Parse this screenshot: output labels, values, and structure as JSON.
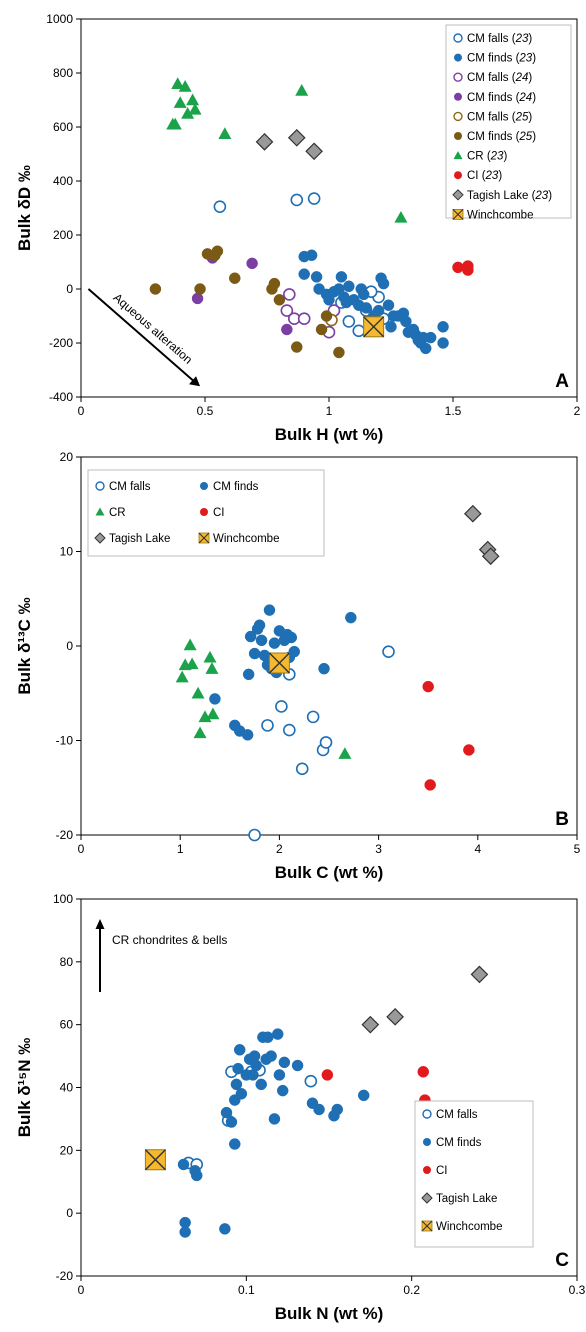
{
  "chart_data": [
    {
      "type": "scatter",
      "panel": "A",
      "xlabel": "Bulk H (wt %)",
      "ylabel": "Bulk δD ‰",
      "xlim": [
        0,
        2
      ],
      "ylim": [
        -400,
        1000
      ],
      "xticks": [
        0,
        0.5,
        1,
        1.5,
        2
      ],
      "yticks": [
        -400,
        -200,
        0,
        200,
        400,
        600,
        800,
        1000
      ],
      "legend_position": "top-right",
      "annotation": "Aqueous alteration",
      "series": [
        {
          "name": "CM falls",
          "ref": "23",
          "marker": "circle-open",
          "color": "#1f6fb5",
          "points": [
            [
              0.56,
              305
            ],
            [
              0.87,
              330
            ],
            [
              0.94,
              335
            ],
            [
              1.05,
              -50
            ],
            [
              1.08,
              -120
            ],
            [
              1.12,
              -155
            ],
            [
              1.15,
              -80
            ],
            [
              1.2,
              -30
            ],
            [
              1.22,
              -110
            ],
            [
              1.17,
              -10
            ]
          ]
        },
        {
          "name": "CM finds",
          "ref": "23",
          "marker": "circle",
          "color": "#1f6fb5",
          "points": [
            [
              0.9,
              120
            ],
            [
              0.93,
              125
            ],
            [
              0.9,
              55
            ],
            [
              0.95,
              45
            ],
            [
              0.96,
              0
            ],
            [
              0.99,
              -20
            ],
            [
              1.0,
              -40
            ],
            [
              1.02,
              -10
            ],
            [
              1.04,
              0
            ],
            [
              1.05,
              45
            ],
            [
              1.06,
              -30
            ],
            [
              1.07,
              -50
            ],
            [
              1.08,
              10
            ],
            [
              1.1,
              -40
            ],
            [
              1.12,
              -60
            ],
            [
              1.13,
              0
            ],
            [
              1.14,
              -20
            ],
            [
              1.15,
              -70
            ],
            [
              1.16,
              -120
            ],
            [
              1.18,
              -100
            ],
            [
              1.2,
              -80
            ],
            [
              1.21,
              40
            ],
            [
              1.22,
              20
            ],
            [
              1.24,
              -60
            ],
            [
              1.25,
              -140
            ],
            [
              1.26,
              -100
            ],
            [
              1.28,
              -100
            ],
            [
              1.3,
              -90
            ],
            [
              1.31,
              -120
            ],
            [
              1.32,
              -160
            ],
            [
              1.34,
              -150
            ],
            [
              1.35,
              -170
            ],
            [
              1.36,
              -190
            ],
            [
              1.37,
              -200
            ],
            [
              1.38,
              -180
            ],
            [
              1.39,
              -220
            ],
            [
              1.41,
              -180
            ],
            [
              1.46,
              -200
            ],
            [
              1.46,
              -140
            ]
          ]
        },
        {
          "name": "CM falls",
          "ref": "24",
          "marker": "circle-open",
          "color": "#7b3fa3",
          "points": [
            [
              0.83,
              -80
            ],
            [
              0.84,
              -20
            ],
            [
              0.86,
              -110
            ],
            [
              0.9,
              -110
            ],
            [
              1.0,
              -160
            ],
            [
              1.02,
              -80
            ]
          ]
        },
        {
          "name": "CM finds",
          "ref": "24",
          "marker": "circle",
          "color": "#7b3fa3",
          "points": [
            [
              0.53,
              115
            ],
            [
              0.69,
              95
            ],
            [
              0.47,
              -35
            ],
            [
              0.83,
              -150
            ]
          ]
        },
        {
          "name": "CM falls",
          "ref": "25",
          "marker": "circle-open",
          "color": "#8b6914",
          "points": [
            [
              1.01,
              -115
            ]
          ]
        },
        {
          "name": "CM finds",
          "ref": "25",
          "marker": "circle",
          "color": "#7a5a14",
          "points": [
            [
              0.3,
              0
            ],
            [
              0.48,
              0
            ],
            [
              0.51,
              130
            ],
            [
              0.55,
              140
            ],
            [
              0.62,
              40
            ],
            [
              0.77,
              0
            ],
            [
              0.78,
              20
            ],
            [
              0.8,
              -40
            ],
            [
              0.87,
              -215
            ],
            [
              0.97,
              -150
            ],
            [
              0.99,
              -100
            ],
            [
              1.04,
              -235
            ],
            [
              0.54,
              125
            ]
          ]
        },
        {
          "name": "CR",
          "ref": "23",
          "marker": "triangle",
          "color": "#1aa34a",
          "points": [
            [
              0.37,
              610
            ],
            [
              0.38,
              610
            ],
            [
              0.39,
              760
            ],
            [
              0.4,
              690
            ],
            [
              0.42,
              750
            ],
            [
              0.43,
              650
            ],
            [
              0.45,
              700
            ],
            [
              0.46,
              665
            ],
            [
              0.58,
              575
            ],
            [
              0.89,
              735
            ],
            [
              1.29,
              265
            ]
          ]
        },
        {
          "name": "CI",
          "ref": "23",
          "marker": "circle",
          "color": "#e31a1c",
          "points": [
            [
              1.52,
              80
            ],
            [
              1.56,
              85
            ],
            [
              1.56,
              70
            ]
          ]
        },
        {
          "name": "Tagish Lake",
          "ref": "23",
          "marker": "diamond",
          "color": "#999999",
          "points": [
            [
              0.74,
              545
            ],
            [
              0.87,
              560
            ],
            [
              0.94,
              510
            ]
          ]
        },
        {
          "name": "Winchcombe",
          "ref": "",
          "marker": "square-x",
          "color": "#f5b82e",
          "points": [
            [
              1.18,
              -140
            ]
          ]
        }
      ]
    },
    {
      "type": "scatter",
      "panel": "B",
      "xlabel": "Bulk C (wt %)",
      "ylabel": "Bulk δ¹³C ‰",
      "xlim": [
        0,
        5
      ],
      "ylim": [
        -20,
        20
      ],
      "xticks": [
        0,
        1,
        2,
        3,
        4,
        5
      ],
      "yticks": [
        -20,
        -10,
        0,
        10,
        20
      ],
      "legend_position": "top-left",
      "series": [
        {
          "name": "CM falls",
          "marker": "circle-open",
          "color": "#1f6fb5",
          "points": [
            [
              1.75,
              -20
            ],
            [
              1.88,
              -8.4
            ],
            [
              2.02,
              -6.4
            ],
            [
              2.1,
              -8.9
            ],
            [
              2.1,
              -3.0
            ],
            [
              2.23,
              -13.0
            ],
            [
              2.34,
              -7.5
            ],
            [
              2.44,
              -11.0
            ],
            [
              2.47,
              -10.2
            ],
            [
              3.1,
              -0.6
            ]
          ]
        },
        {
          "name": "CM finds",
          "marker": "circle",
          "color": "#1f6fb5",
          "points": [
            [
              1.35,
              -5.6
            ],
            [
              1.55,
              -8.4
            ],
            [
              1.6,
              -9.0
            ],
            [
              1.68,
              -9.4
            ],
            [
              1.69,
              -3.0
            ],
            [
              1.71,
              1.0
            ],
            [
              1.75,
              -0.8
            ],
            [
              1.78,
              1.8
            ],
            [
              1.8,
              2.2
            ],
            [
              1.82,
              0.6
            ],
            [
              1.85,
              -1.0
            ],
            [
              1.9,
              3.8
            ],
            [
              1.95,
              0.3
            ],
            [
              2.0,
              1.6
            ],
            [
              2.02,
              -1.8
            ],
            [
              2.05,
              0.6
            ],
            [
              2.08,
              1.2
            ],
            [
              2.1,
              -1.2
            ],
            [
              2.12,
              0.9
            ],
            [
              2.15,
              -0.6
            ],
            [
              1.92,
              -2.4
            ],
            [
              1.97,
              -2.8
            ],
            [
              1.88,
              -2.0
            ],
            [
              2.45,
              -2.4
            ],
            [
              2.72,
              3.0
            ]
          ]
        },
        {
          "name": "CR",
          "marker": "triangle",
          "color": "#1aa34a",
          "points": [
            [
              1.02,
              -3.3
            ],
            [
              1.05,
              -2.0
            ],
            [
              1.1,
              0.1
            ],
            [
              1.12,
              -1.9
            ],
            [
              1.18,
              -5.0
            ],
            [
              1.2,
              -9.2
            ],
            [
              1.25,
              -7.5
            ],
            [
              1.3,
              -1.2
            ],
            [
              1.32,
              -2.4
            ],
            [
              1.33,
              -7.2
            ],
            [
              2.66,
              -11.4
            ]
          ]
        },
        {
          "name": "CI",
          "marker": "circle",
          "color": "#e31a1c",
          "points": [
            [
              3.5,
              -4.3
            ],
            [
              3.52,
              -14.7
            ],
            [
              3.91,
              -11.0
            ]
          ]
        },
        {
          "name": "Tagish Lake",
          "marker": "diamond",
          "color": "#999999",
          "points": [
            [
              3.95,
              14.0
            ],
            [
              4.1,
              10.2
            ],
            [
              4.13,
              9.5
            ]
          ]
        },
        {
          "name": "Winchcombe",
          "marker": "square-x",
          "color": "#f5b82e",
          "points": [
            [
              2.0,
              -1.8
            ]
          ]
        }
      ]
    },
    {
      "type": "scatter",
      "panel": "C",
      "xlabel": "Bulk N (wt %)",
      "ylabel": "Bulk δ¹⁵N ‰",
      "xlim": [
        0,
        0.3
      ],
      "ylim": [
        -20,
        100
      ],
      "xticks": [
        0,
        0.1,
        0.2,
        0.3
      ],
      "yticks": [
        -20,
        0,
        20,
        40,
        60,
        80,
        100
      ],
      "legend_position": "bottom-right",
      "annotation": "CR chondrites & bells",
      "series": [
        {
          "name": "CM falls",
          "marker": "circle-open",
          "color": "#1f6fb5",
          "points": [
            [
              0.065,
              16
            ],
            [
              0.07,
              15.5
            ],
            [
              0.089,
              29.5
            ],
            [
              0.091,
              45
            ],
            [
              0.103,
              45
            ],
            [
              0.108,
              45.5
            ],
            [
              0.139,
              42
            ]
          ]
        },
        {
          "name": "CM finds",
          "marker": "circle",
          "color": "#1f6fb5",
          "points": [
            [
              0.062,
              15.5
            ],
            [
              0.063,
              -3
            ],
            [
              0.063,
              -6
            ],
            [
              0.069,
              13.5
            ],
            [
              0.07,
              12
            ],
            [
              0.087,
              -5
            ],
            [
              0.088,
              32
            ],
            [
              0.091,
              29
            ],
            [
              0.093,
              22
            ],
            [
              0.093,
              36
            ],
            [
              0.094,
              41
            ],
            [
              0.095,
              46
            ],
            [
              0.096,
              52
            ],
            [
              0.097,
              38
            ],
            [
              0.1,
              44
            ],
            [
              0.102,
              49
            ],
            [
              0.104,
              44
            ],
            [
              0.106,
              47
            ],
            [
              0.109,
              41
            ],
            [
              0.11,
              56
            ],
            [
              0.112,
              49
            ],
            [
              0.113,
              56
            ],
            [
              0.115,
              50
            ],
            [
              0.117,
              30
            ],
            [
              0.119,
              57
            ],
            [
              0.12,
              44
            ],
            [
              0.122,
              39
            ],
            [
              0.123,
              48
            ],
            [
              0.131,
              47
            ],
            [
              0.14,
              35
            ],
            [
              0.144,
              33
            ],
            [
              0.153,
              31
            ],
            [
              0.155,
              33
            ],
            [
              0.171,
              37.5
            ],
            [
              0.105,
              50
            ]
          ]
        },
        {
          "name": "CI",
          "marker": "circle",
          "color": "#e31a1c",
          "points": [
            [
              0.149,
              44
            ],
            [
              0.207,
              45
            ],
            [
              0.208,
              36
            ]
          ]
        },
        {
          "name": "Tagish Lake",
          "marker": "diamond",
          "color": "#999999",
          "points": [
            [
              0.175,
              60
            ],
            [
              0.19,
              62.5
            ],
            [
              0.241,
              76
            ]
          ]
        },
        {
          "name": "Winchcombe",
          "marker": "square-x",
          "color": "#f5b82e",
          "points": [
            [
              0.045,
              17
            ]
          ]
        }
      ]
    }
  ]
}
